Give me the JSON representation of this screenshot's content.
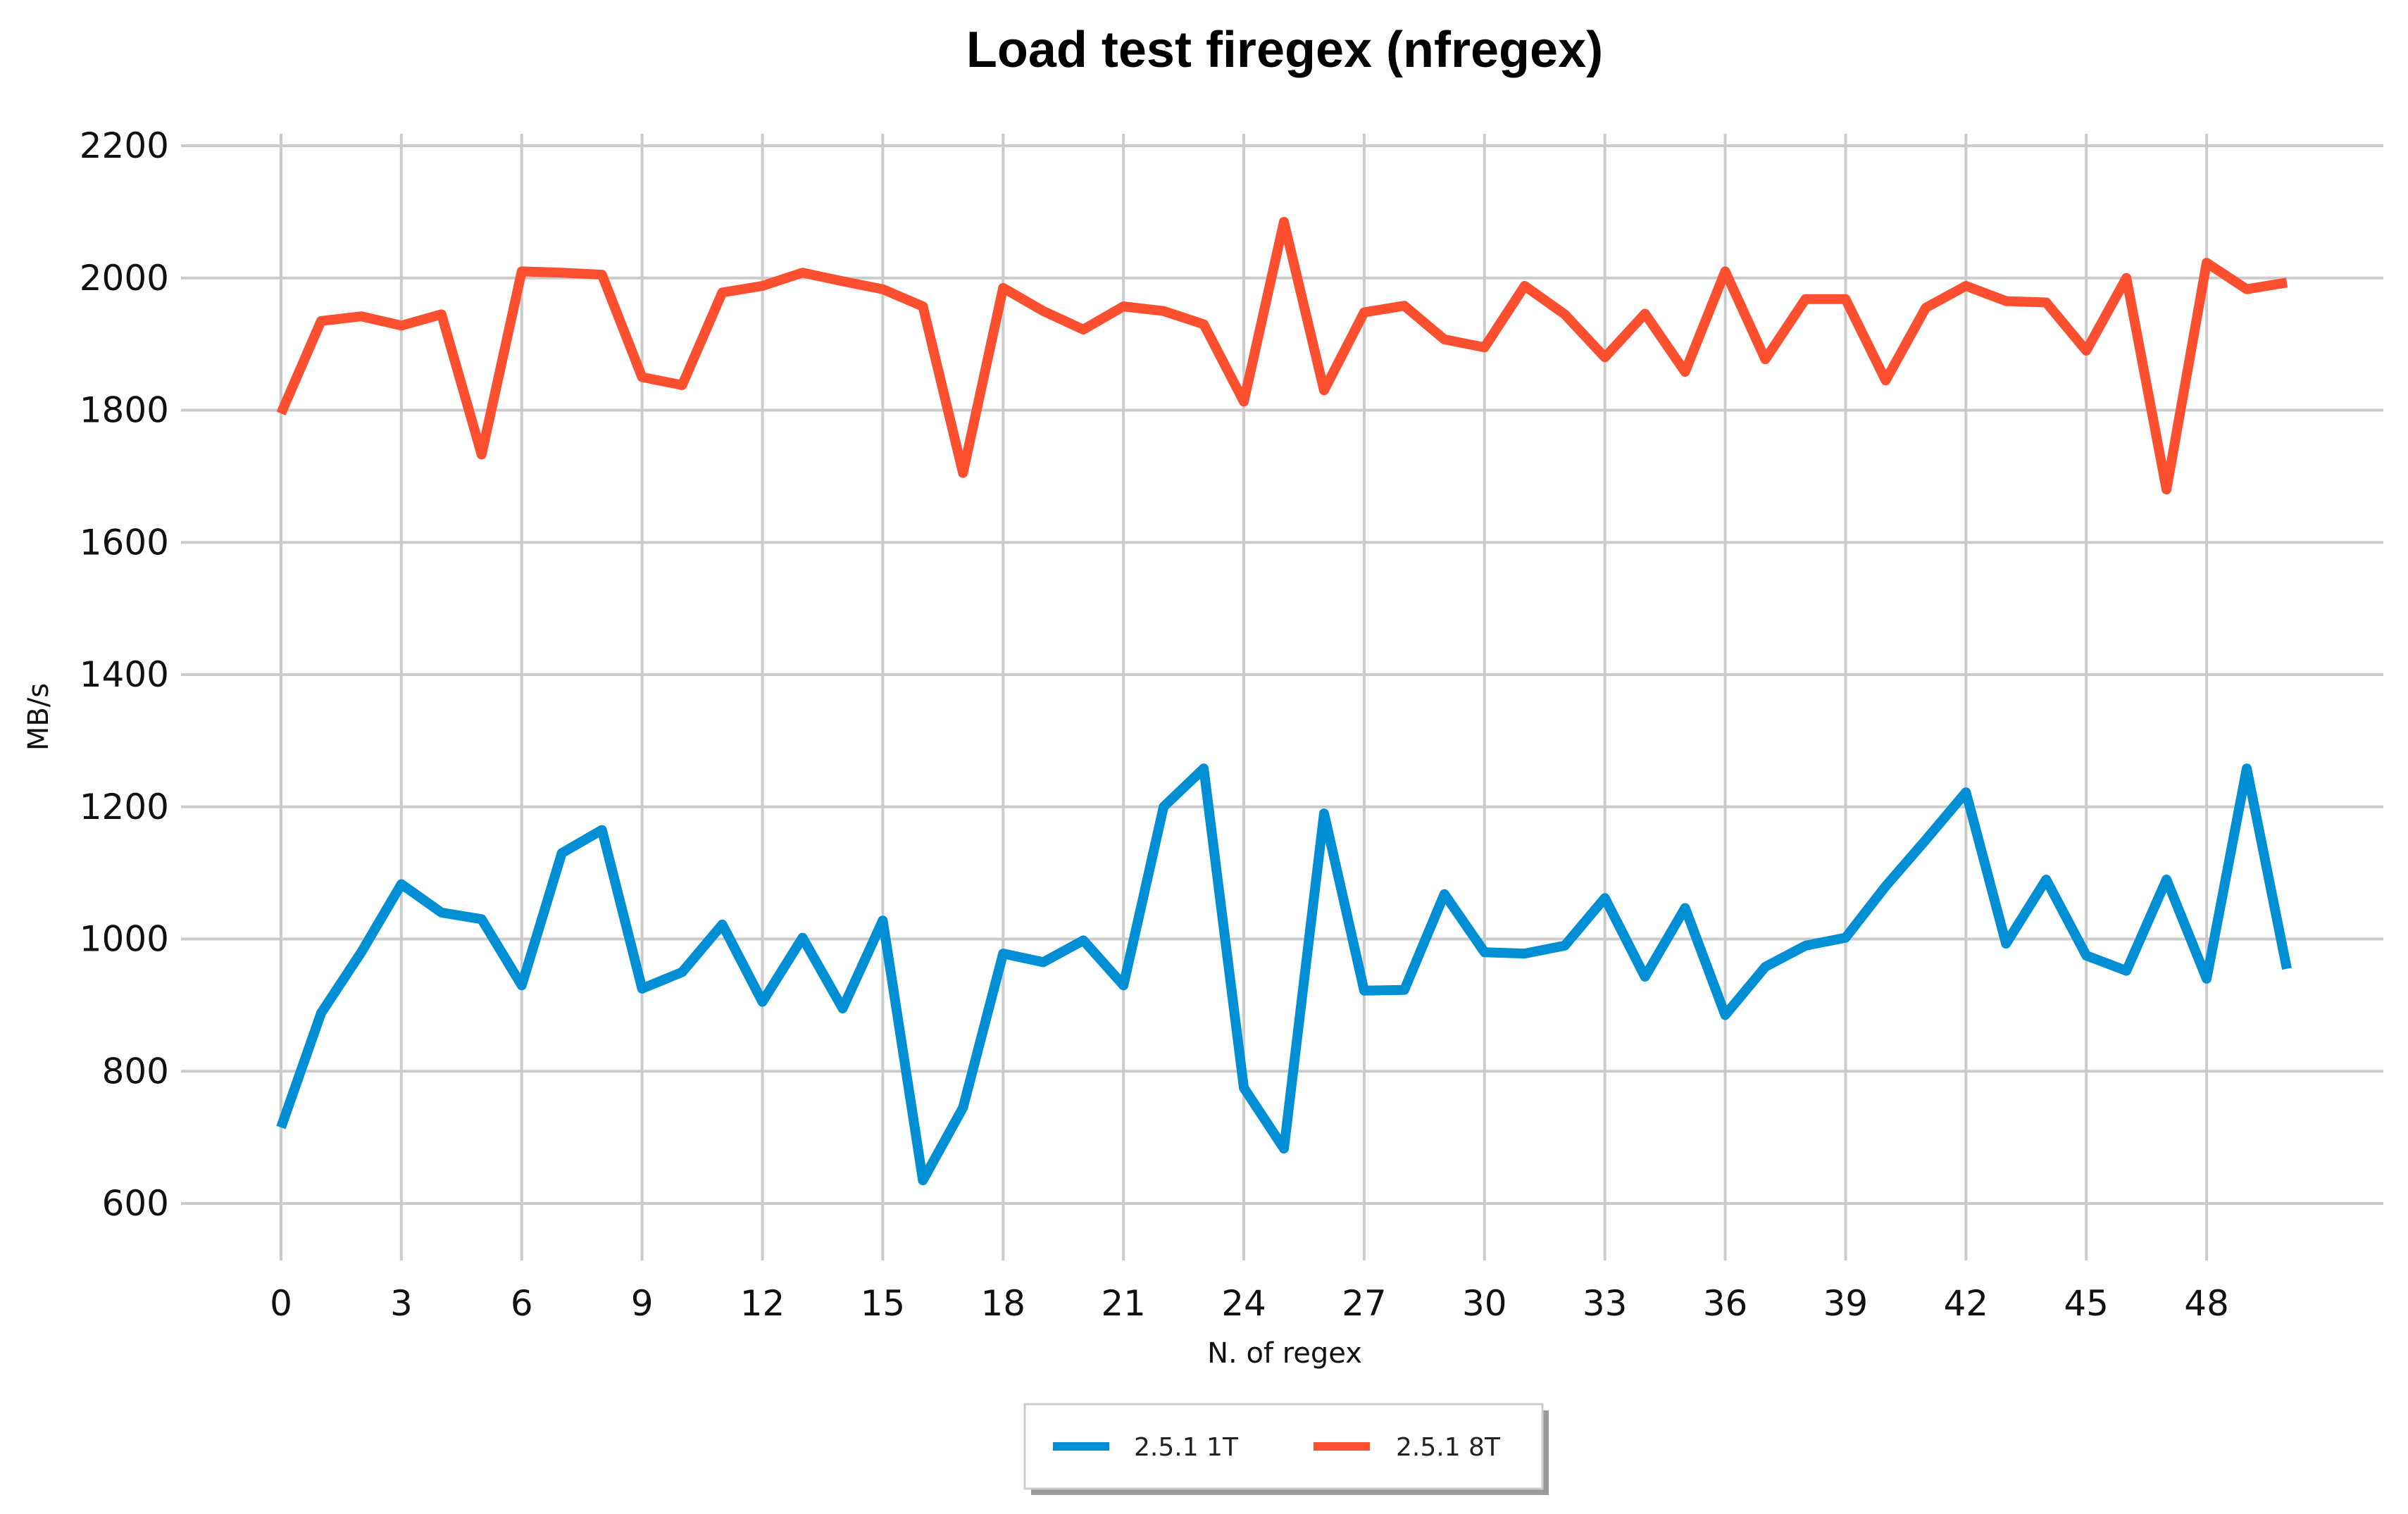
{
  "chart_data": {
    "type": "line",
    "title": "Load test firegex (nfregex)",
    "xlabel": "N. of regex",
    "ylabel": "MB/s",
    "xlim": [
      0,
      50
    ],
    "ylim": [
      600,
      2200
    ],
    "xticks": [
      0,
      3,
      6,
      9,
      12,
      15,
      18,
      21,
      24,
      27,
      30,
      33,
      36,
      39,
      42,
      45,
      48
    ],
    "yticks": [
      600,
      800,
      1000,
      1200,
      1400,
      1600,
      1800,
      2000,
      2200
    ],
    "grid": true,
    "legend_position": "bottom-center",
    "x": [
      0,
      1,
      2,
      3,
      4,
      5,
      6,
      7,
      8,
      9,
      10,
      11,
      12,
      13,
      14,
      15,
      16,
      17,
      18,
      19,
      20,
      21,
      22,
      23,
      24,
      25,
      26,
      27,
      28,
      29,
      30,
      31,
      32,
      33,
      34,
      35,
      36,
      37,
      38,
      39,
      40,
      41,
      42,
      43,
      44,
      45,
      46,
      47,
      48,
      49,
      50
    ],
    "series": [
      {
        "name": "2.5.1 1T",
        "color": "#008fd5",
        "values": [
          715,
          888,
          980,
          1083,
          1040,
          1030,
          930,
          1130,
          1165,
          925,
          950,
          1022,
          905,
          1002,
          895,
          1028,
          635,
          745,
          978,
          965,
          998,
          930,
          1200,
          1258,
          775,
          683,
          1190,
          922,
          923,
          1068,
          980,
          978,
          990,
          1062,
          943,
          1047,
          885,
          958,
          990,
          1002,
          1080,
          1150,
          1222,
          993,
          1090,
          975,
          952,
          1090,
          940,
          1258,
          955
        ]
      },
      {
        "name": "2.5.1 8T",
        "color": "#fc4f30",
        "values": [
          1795,
          1935,
          1942,
          1928,
          1945,
          1733,
          2010,
          2008,
          2005,
          1850,
          1838,
          1978,
          1988,
          2008,
          1995,
          1983,
          1957,
          1705,
          1985,
          1950,
          1922,
          1957,
          1950,
          1930,
          1813,
          2085,
          1830,
          1948,
          1958,
          1907,
          1895,
          1988,
          1945,
          1880,
          1946,
          1858,
          2010,
          1877,
          1968,
          1968,
          1845,
          1955,
          1988,
          1965,
          1963,
          1890,
          2000,
          1680,
          2023,
          1983,
          1993
        ]
      }
    ]
  }
}
